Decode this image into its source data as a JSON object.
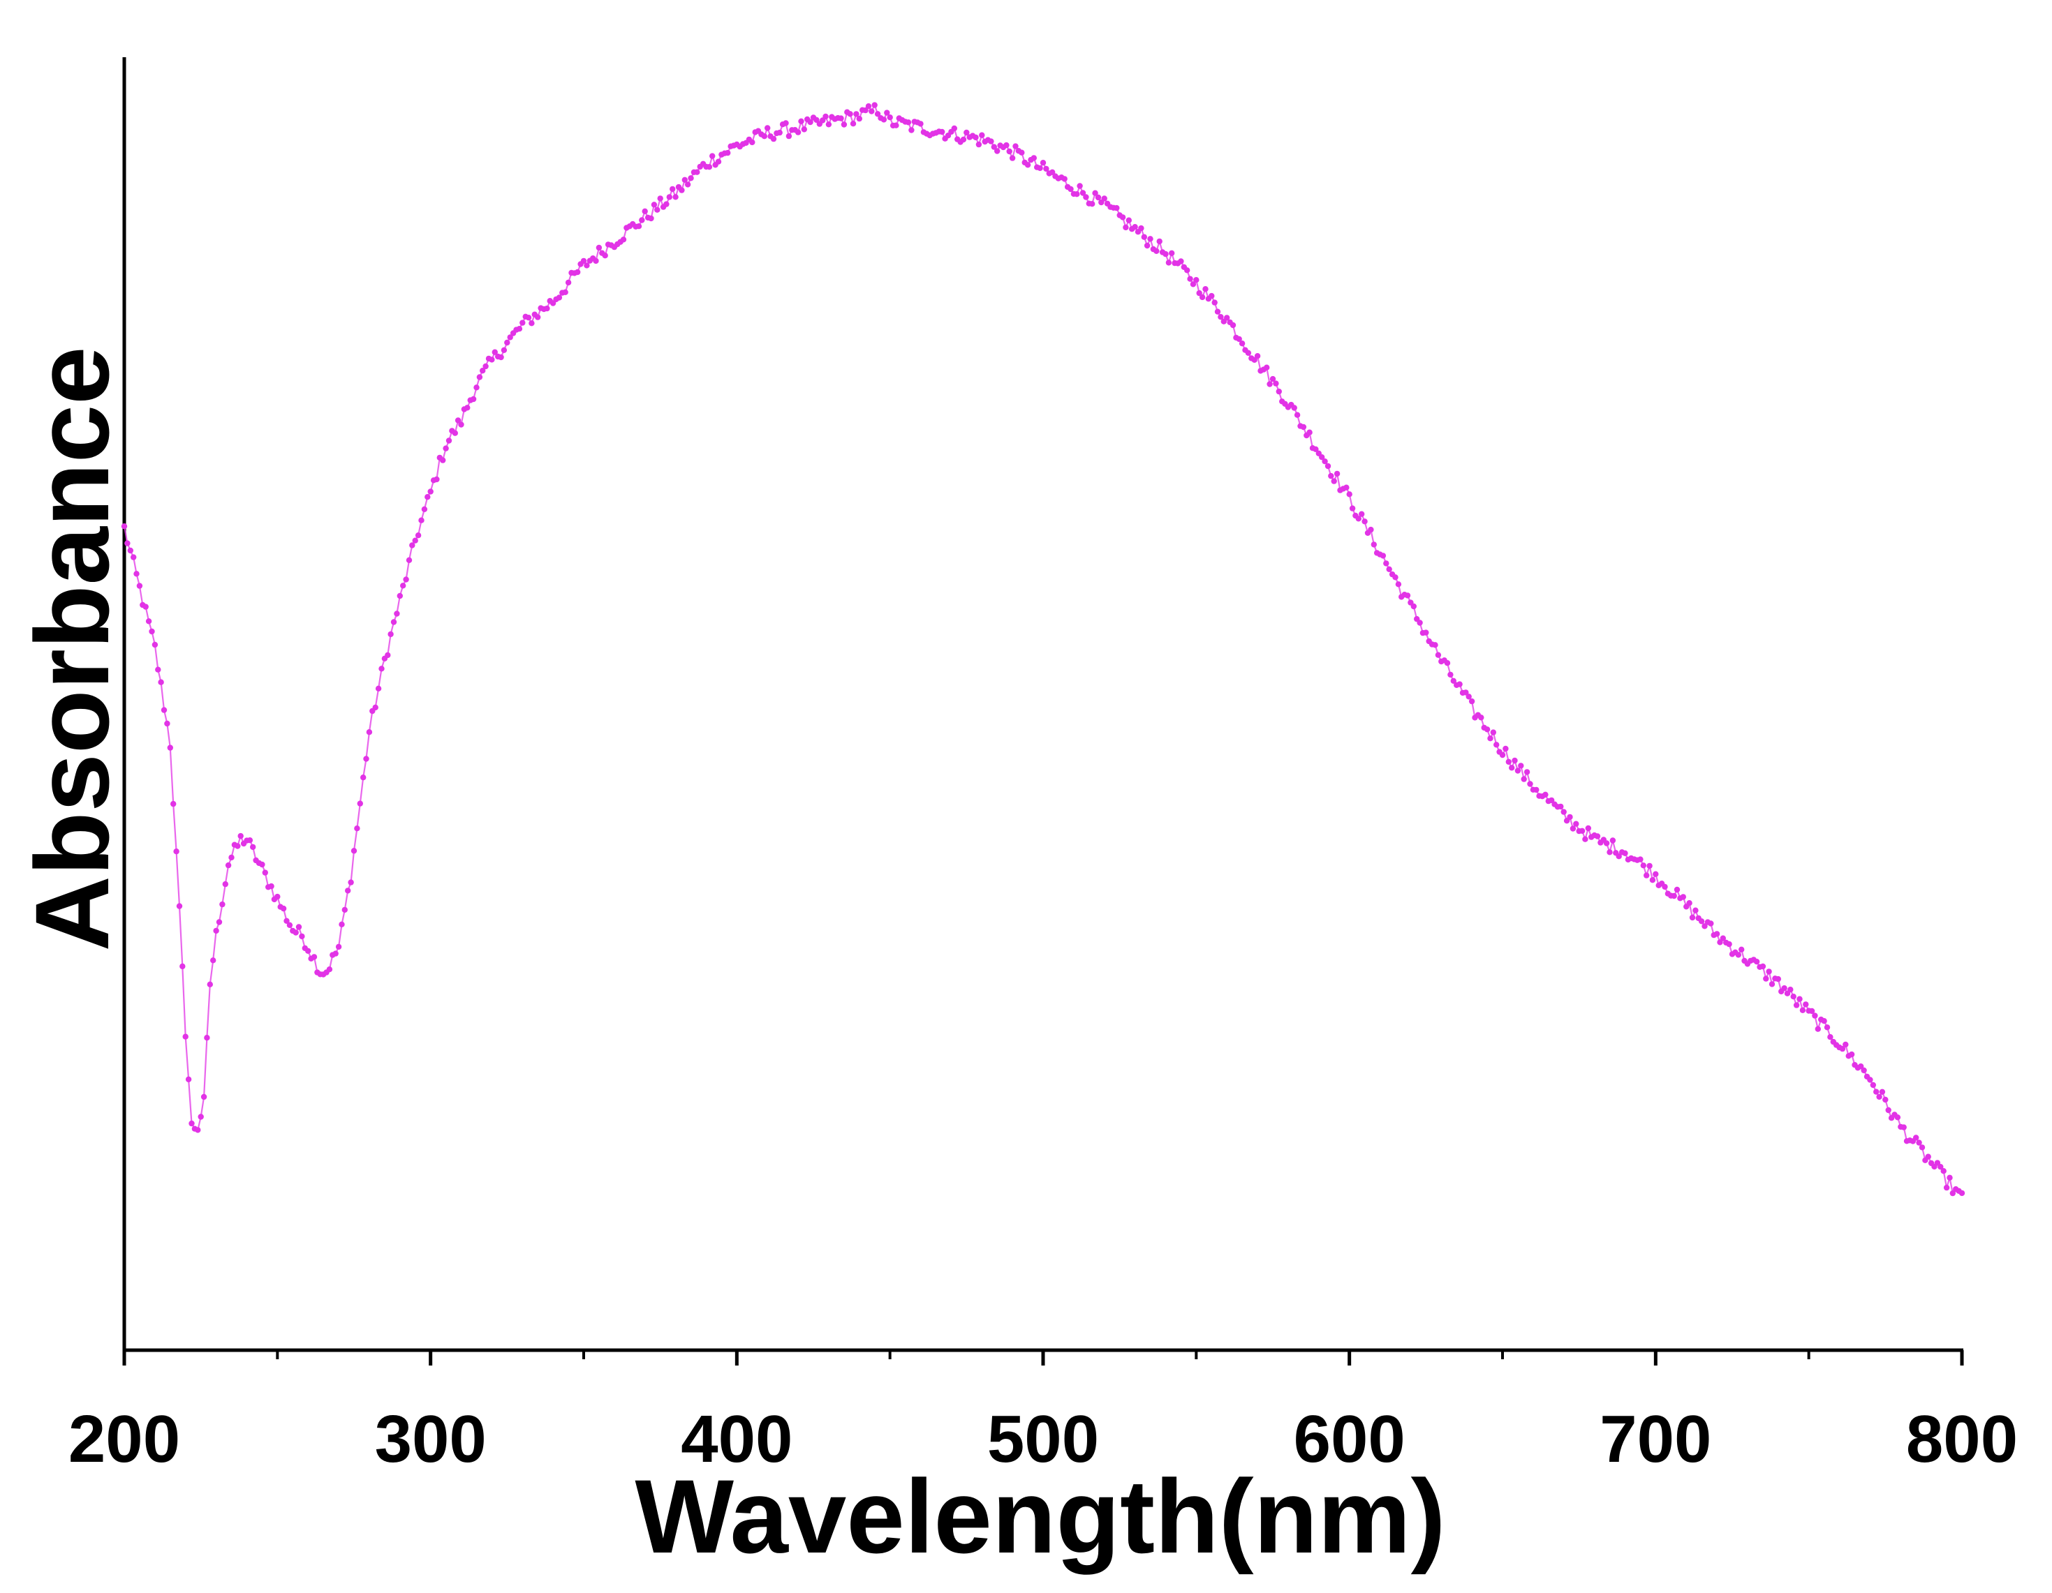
{
  "chart_data": {
    "type": "line",
    "title": "",
    "xlabel": "Wavelength(nm)",
    "ylabel": "Absorbance",
    "xlim": [
      200,
      800
    ],
    "ylim": [
      0,
      1
    ],
    "xticks": [
      200,
      300,
      400,
      500,
      600,
      700,
      800
    ],
    "xtick_labels": [
      "200",
      "300",
      "400",
      "500",
      "600",
      "700",
      "800"
    ],
    "minor_xticks": [
      250,
      350,
      450,
      550,
      650,
      750
    ],
    "yticks_shown": false,
    "grid": false,
    "legend": null,
    "series": [
      {
        "name": "absorbance",
        "color": "#e233e6",
        "marker": "dot",
        "x": [
          200,
          205,
          210,
          215,
          218,
          220,
          222,
          224,
          226,
          228,
          230,
          232,
          234,
          236,
          238,
          240,
          242,
          244,
          246,
          248,
          250,
          252,
          255,
          258,
          262,
          264,
          266,
          268,
          270,
          272,
          274,
          276,
          278,
          280,
          285,
          290,
          295,
          300,
          305,
          310,
          315,
          320,
          330,
          340,
          350,
          360,
          370,
          380,
          390,
          400,
          410,
          420,
          430,
          440,
          446,
          450,
          460,
          470,
          480,
          490,
          500,
          510,
          520,
          530,
          540,
          550,
          560,
          570,
          580,
          590,
          600,
          610,
          620,
          630,
          640,
          650,
          660,
          670,
          680,
          690,
          700,
          710,
          720,
          730,
          740,
          750,
          760,
          770,
          780,
          790,
          800
        ],
        "y": [
          0.64,
          0.59,
          0.54,
          0.46,
          0.32,
          0.22,
          0.14,
          0.14,
          0.16,
          0.26,
          0.3,
          0.33,
          0.36,
          0.37,
          0.38,
          0.38,
          0.37,
          0.36,
          0.35,
          0.34,
          0.33,
          0.32,
          0.305,
          0.3,
          0.28,
          0.27,
          0.27,
          0.28,
          0.29,
          0.32,
          0.35,
          0.39,
          0.43,
          0.47,
          0.53,
          0.58,
          0.63,
          0.67,
          0.71,
          0.73,
          0.76,
          0.78,
          0.81,
          0.83,
          0.86,
          0.88,
          0.9,
          0.92,
          0.945,
          0.96,
          0.97,
          0.975,
          0.98,
          0.985,
          0.99,
          0.98,
          0.975,
          0.97,
          0.965,
          0.955,
          0.94,
          0.925,
          0.91,
          0.89,
          0.87,
          0.845,
          0.815,
          0.78,
          0.745,
          0.705,
          0.665,
          0.62,
          0.575,
          0.53,
          0.49,
          0.455,
          0.425,
          0.4,
          0.38,
          0.37,
          0.35,
          0.325,
          0.3,
          0.28,
          0.26,
          0.235,
          0.21,
          0.18,
          0.14,
          0.11,
          0.08
        ]
      }
    ]
  }
}
